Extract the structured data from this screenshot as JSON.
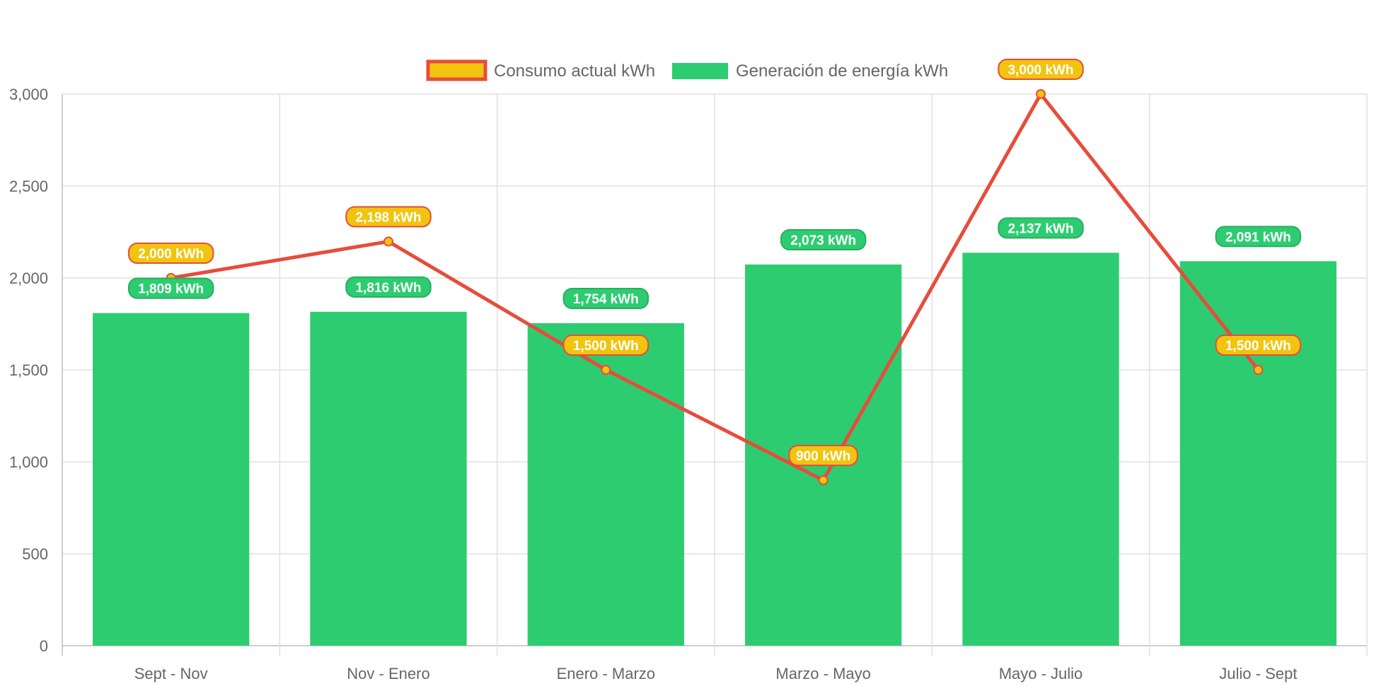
{
  "chart_data": {
    "type": "bar",
    "categories": [
      "Sept - Nov",
      "Nov - Enero",
      "Enero - Marzo",
      "Marzo - Mayo",
      "Mayo - Julio",
      "Julio - Sept"
    ],
    "series": [
      {
        "name": "Generación de energía kWh",
        "type": "bar",
        "values": [
          1809,
          1816,
          1754,
          2073,
          2137,
          2091
        ],
        "labels": [
          "1,809 kWh",
          "1,816 kWh",
          "1,754 kWh",
          "2,073 kWh",
          "2,137 kWh",
          "2,091 kWh"
        ],
        "color": "#2ecc71"
      },
      {
        "name": "Consumo actual kWh",
        "type": "line",
        "values": [
          2000,
          2198,
          1500,
          900,
          3000,
          1500
        ],
        "labels": [
          "2,000 kWh",
          "2,198 kWh",
          "1,500 kWh",
          "900 kWh",
          "3,000 kWh",
          "1,500 kWh"
        ],
        "color": "#e74c3c",
        "fill_color": "#f1c40f"
      }
    ],
    "yticks": [
      "0",
      "500",
      "1,000",
      "1,500",
      "2,000",
      "2,500",
      "3,000"
    ],
    "ylim": [
      0,
      3000
    ],
    "grid": true,
    "legend_position": "top-center",
    "title": "",
    "xlabel": "",
    "ylabel": ""
  }
}
